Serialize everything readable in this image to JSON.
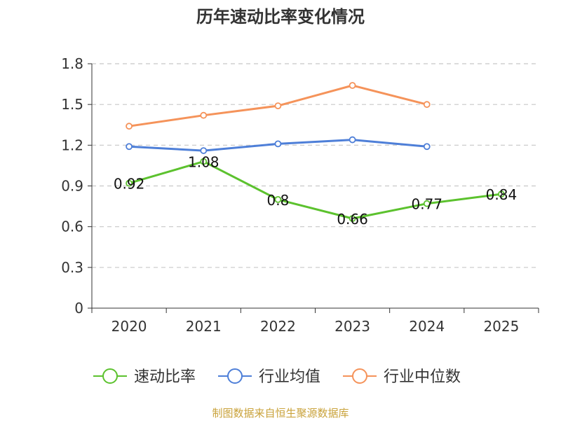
{
  "chart_data": {
    "type": "line",
    "title": "历年速动比率变化情况",
    "categories": [
      "2020",
      "2021",
      "2022",
      "2023",
      "2024",
      "2025"
    ],
    "ylim": [
      0,
      1.8
    ],
    "yticks": [
      0,
      0.3,
      0.6,
      0.9,
      1.2,
      1.5,
      1.8
    ],
    "ytick_labels": [
      "0",
      "0.3",
      "0.6",
      "0.9",
      "1.2",
      "1.5",
      "1.8"
    ],
    "grid": true,
    "legend_position": "bottom-center",
    "series": [
      {
        "name": "速动比率",
        "color": "#5cc22e",
        "values": [
          0.92,
          1.08,
          0.8,
          0.66,
          0.77,
          0.84
        ],
        "labels": [
          "0.92",
          "1.08",
          "0.8",
          "0.66",
          "0.77",
          "0.84"
        ],
        "show_labels": true
      },
      {
        "name": "行业均值",
        "color": "#4e7fd8",
        "values": [
          1.19,
          1.16,
          1.21,
          1.24,
          1.19,
          null
        ],
        "show_labels": false
      },
      {
        "name": "行业中位数",
        "color": "#f5935a",
        "values": [
          1.34,
          1.42,
          1.49,
          1.64,
          1.5,
          null
        ],
        "show_labels": false
      }
    ],
    "source_note": "制图数据来自恒生聚源数据库"
  },
  "colors": {
    "axis": "#333333",
    "grid": "#c8c8c8",
    "source_note": "#c9a23a",
    "title": "#333333"
  }
}
